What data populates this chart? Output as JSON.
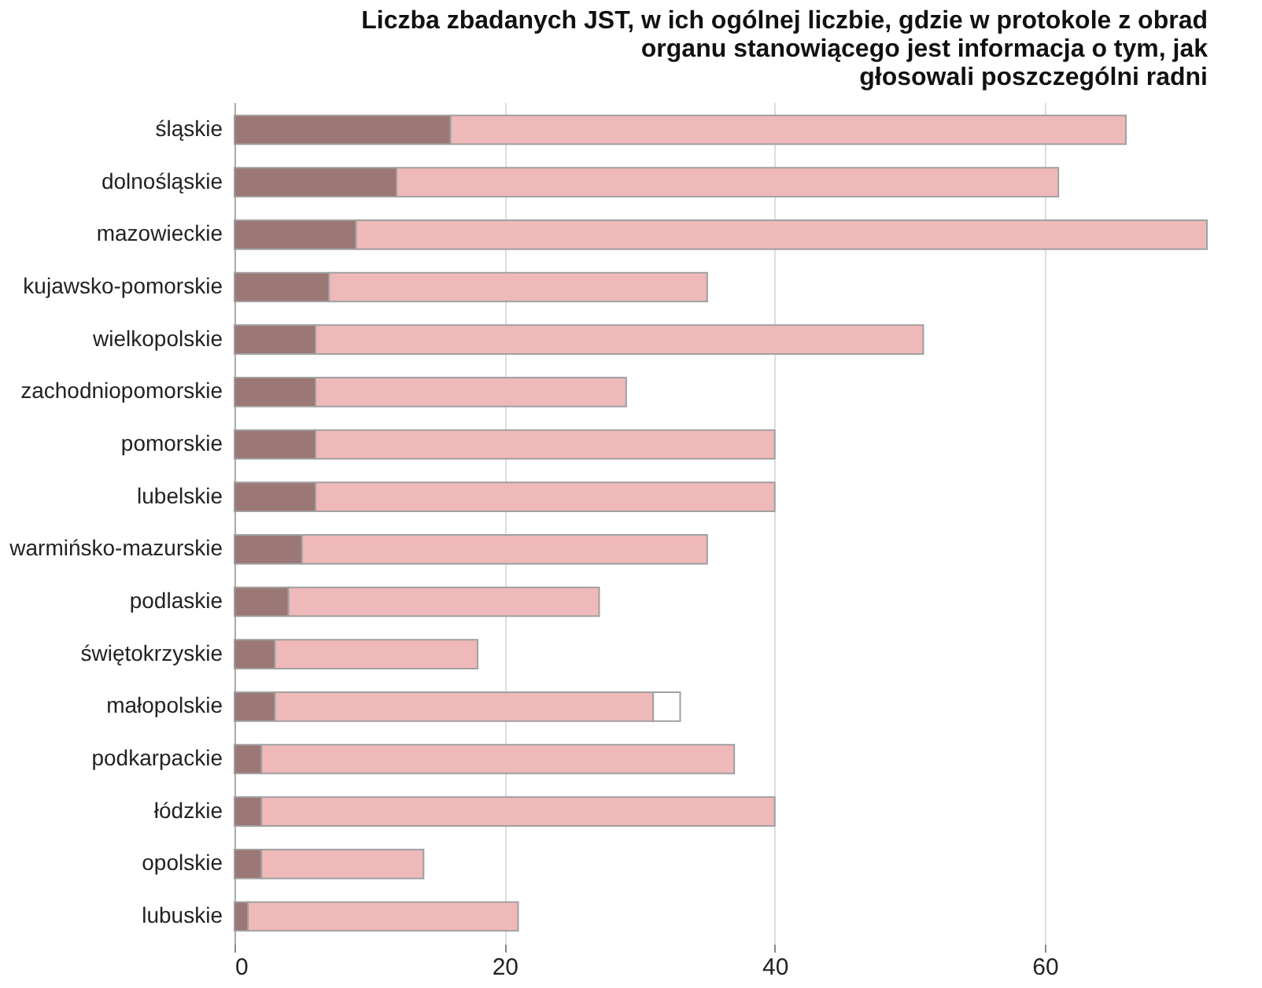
{
  "chart_data": {
    "type": "bar",
    "orientation": "horizontal",
    "stacked": true,
    "title": "Liczba zbadanych JST, w ich ogólnej liczbie, gdzie w protokole z obrad\norganu stanowiącego jest informacja o tym, jak\ngłosowali poszczególni radni",
    "categories": [
      "śląskie",
      "dolnośląskie",
      "mazowieckie",
      "kujawsko-pomorskie",
      "wielkopolskie",
      "zachodniopomorskie",
      "pomorskie",
      "lubelskie",
      "warmińsko-mazurskie",
      "podlaskie",
      "świętokrzyskie",
      "małopolskie",
      "podkarpackie",
      "łódzkie",
      "opolskie",
      "lubuskie"
    ],
    "series": [
      {
        "color": "#9b7776",
        "values": [
          16,
          12,
          9,
          7,
          6,
          6,
          6,
          6,
          5,
          4,
          3,
          3,
          2,
          2,
          2,
          1
        ]
      },
      {
        "color": "#f0b9b9",
        "values": [
          50,
          49,
          63,
          28,
          45,
          23,
          34,
          34,
          30,
          23,
          15,
          28,
          35,
          38,
          12,
          20
        ]
      },
      {
        "color": "#ffffff",
        "values": [
          null,
          null,
          null,
          null,
          null,
          null,
          null,
          null,
          null,
          null,
          null,
          2,
          null,
          null,
          null,
          null
        ]
      }
    ],
    "xlim": [
      0,
      72
    ],
    "xticks": [
      0,
      20,
      40,
      60
    ],
    "grid": "x",
    "legend": false
  }
}
